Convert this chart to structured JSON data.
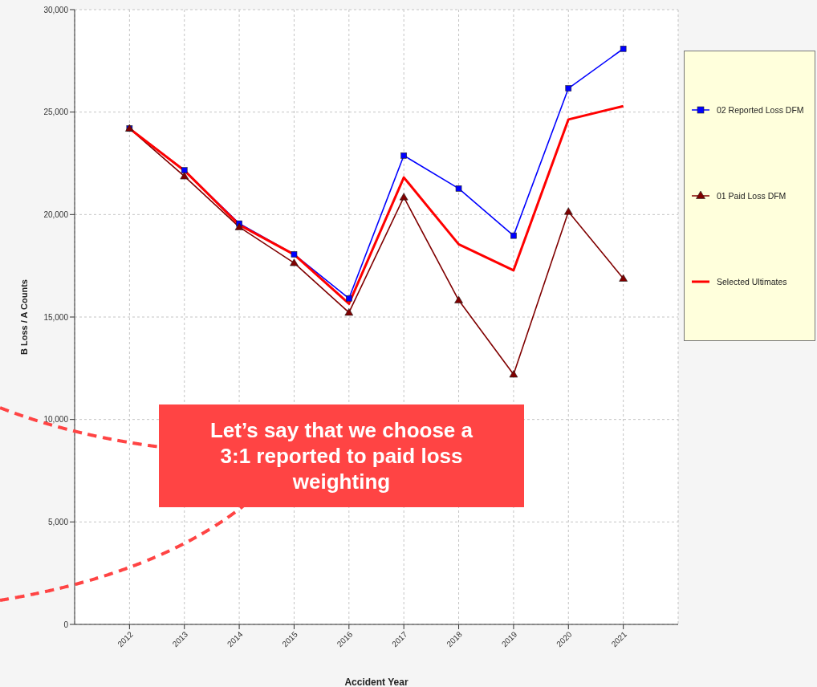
{
  "chart_data": {
    "type": "line",
    "xlabel": "Accident Year",
    "ylabel": "B Loss / A Counts",
    "x": [
      2012,
      2013,
      2014,
      2015,
      2016,
      2017,
      2018,
      2019,
      2020,
      2021
    ],
    "xlim": [
      2011,
      2022
    ],
    "xticks": [
      2012,
      2013,
      2014,
      2015,
      2016,
      2017,
      2018,
      2019,
      2020,
      2021
    ],
    "ylim": [
      0,
      30000
    ],
    "yticks": [
      {
        "value": 0,
        "label": "0"
      },
      {
        "value": 5000,
        "label": "5,000"
      },
      {
        "value": 10000,
        "label": "10,000"
      },
      {
        "value": 15000,
        "label": "15,000"
      },
      {
        "value": 20000,
        "label": "20,000"
      },
      {
        "value": 25000,
        "label": "25,000"
      },
      {
        "value": 30000,
        "label": "30,000"
      }
    ],
    "series": [
      {
        "name": "02 Reported Loss DFM",
        "color": "#0000ff",
        "marker": "square",
        "values": [
          24200,
          22160,
          19560,
          18060,
          15910,
          22880,
          21270,
          18970,
          26160,
          28090
        ]
      },
      {
        "name": "01 Paid Loss DFM",
        "color": "#800000",
        "marker": "triangle",
        "values": [
          24200,
          21870,
          19390,
          17640,
          15220,
          20850,
          15820,
          12200,
          20140,
          16880
        ]
      },
      {
        "name": "Selected Ultimates",
        "color": "#ff0000",
        "marker": "none",
        "values": [
          24200,
          22150,
          19500,
          18050,
          15650,
          21810,
          18550,
          17280,
          24640,
          25290
        ]
      }
    ],
    "grid": true,
    "legend": "right",
    "annotations": [
      "Let’s say that we choose a 3:1 reported to paid loss weighting"
    ]
  }
}
